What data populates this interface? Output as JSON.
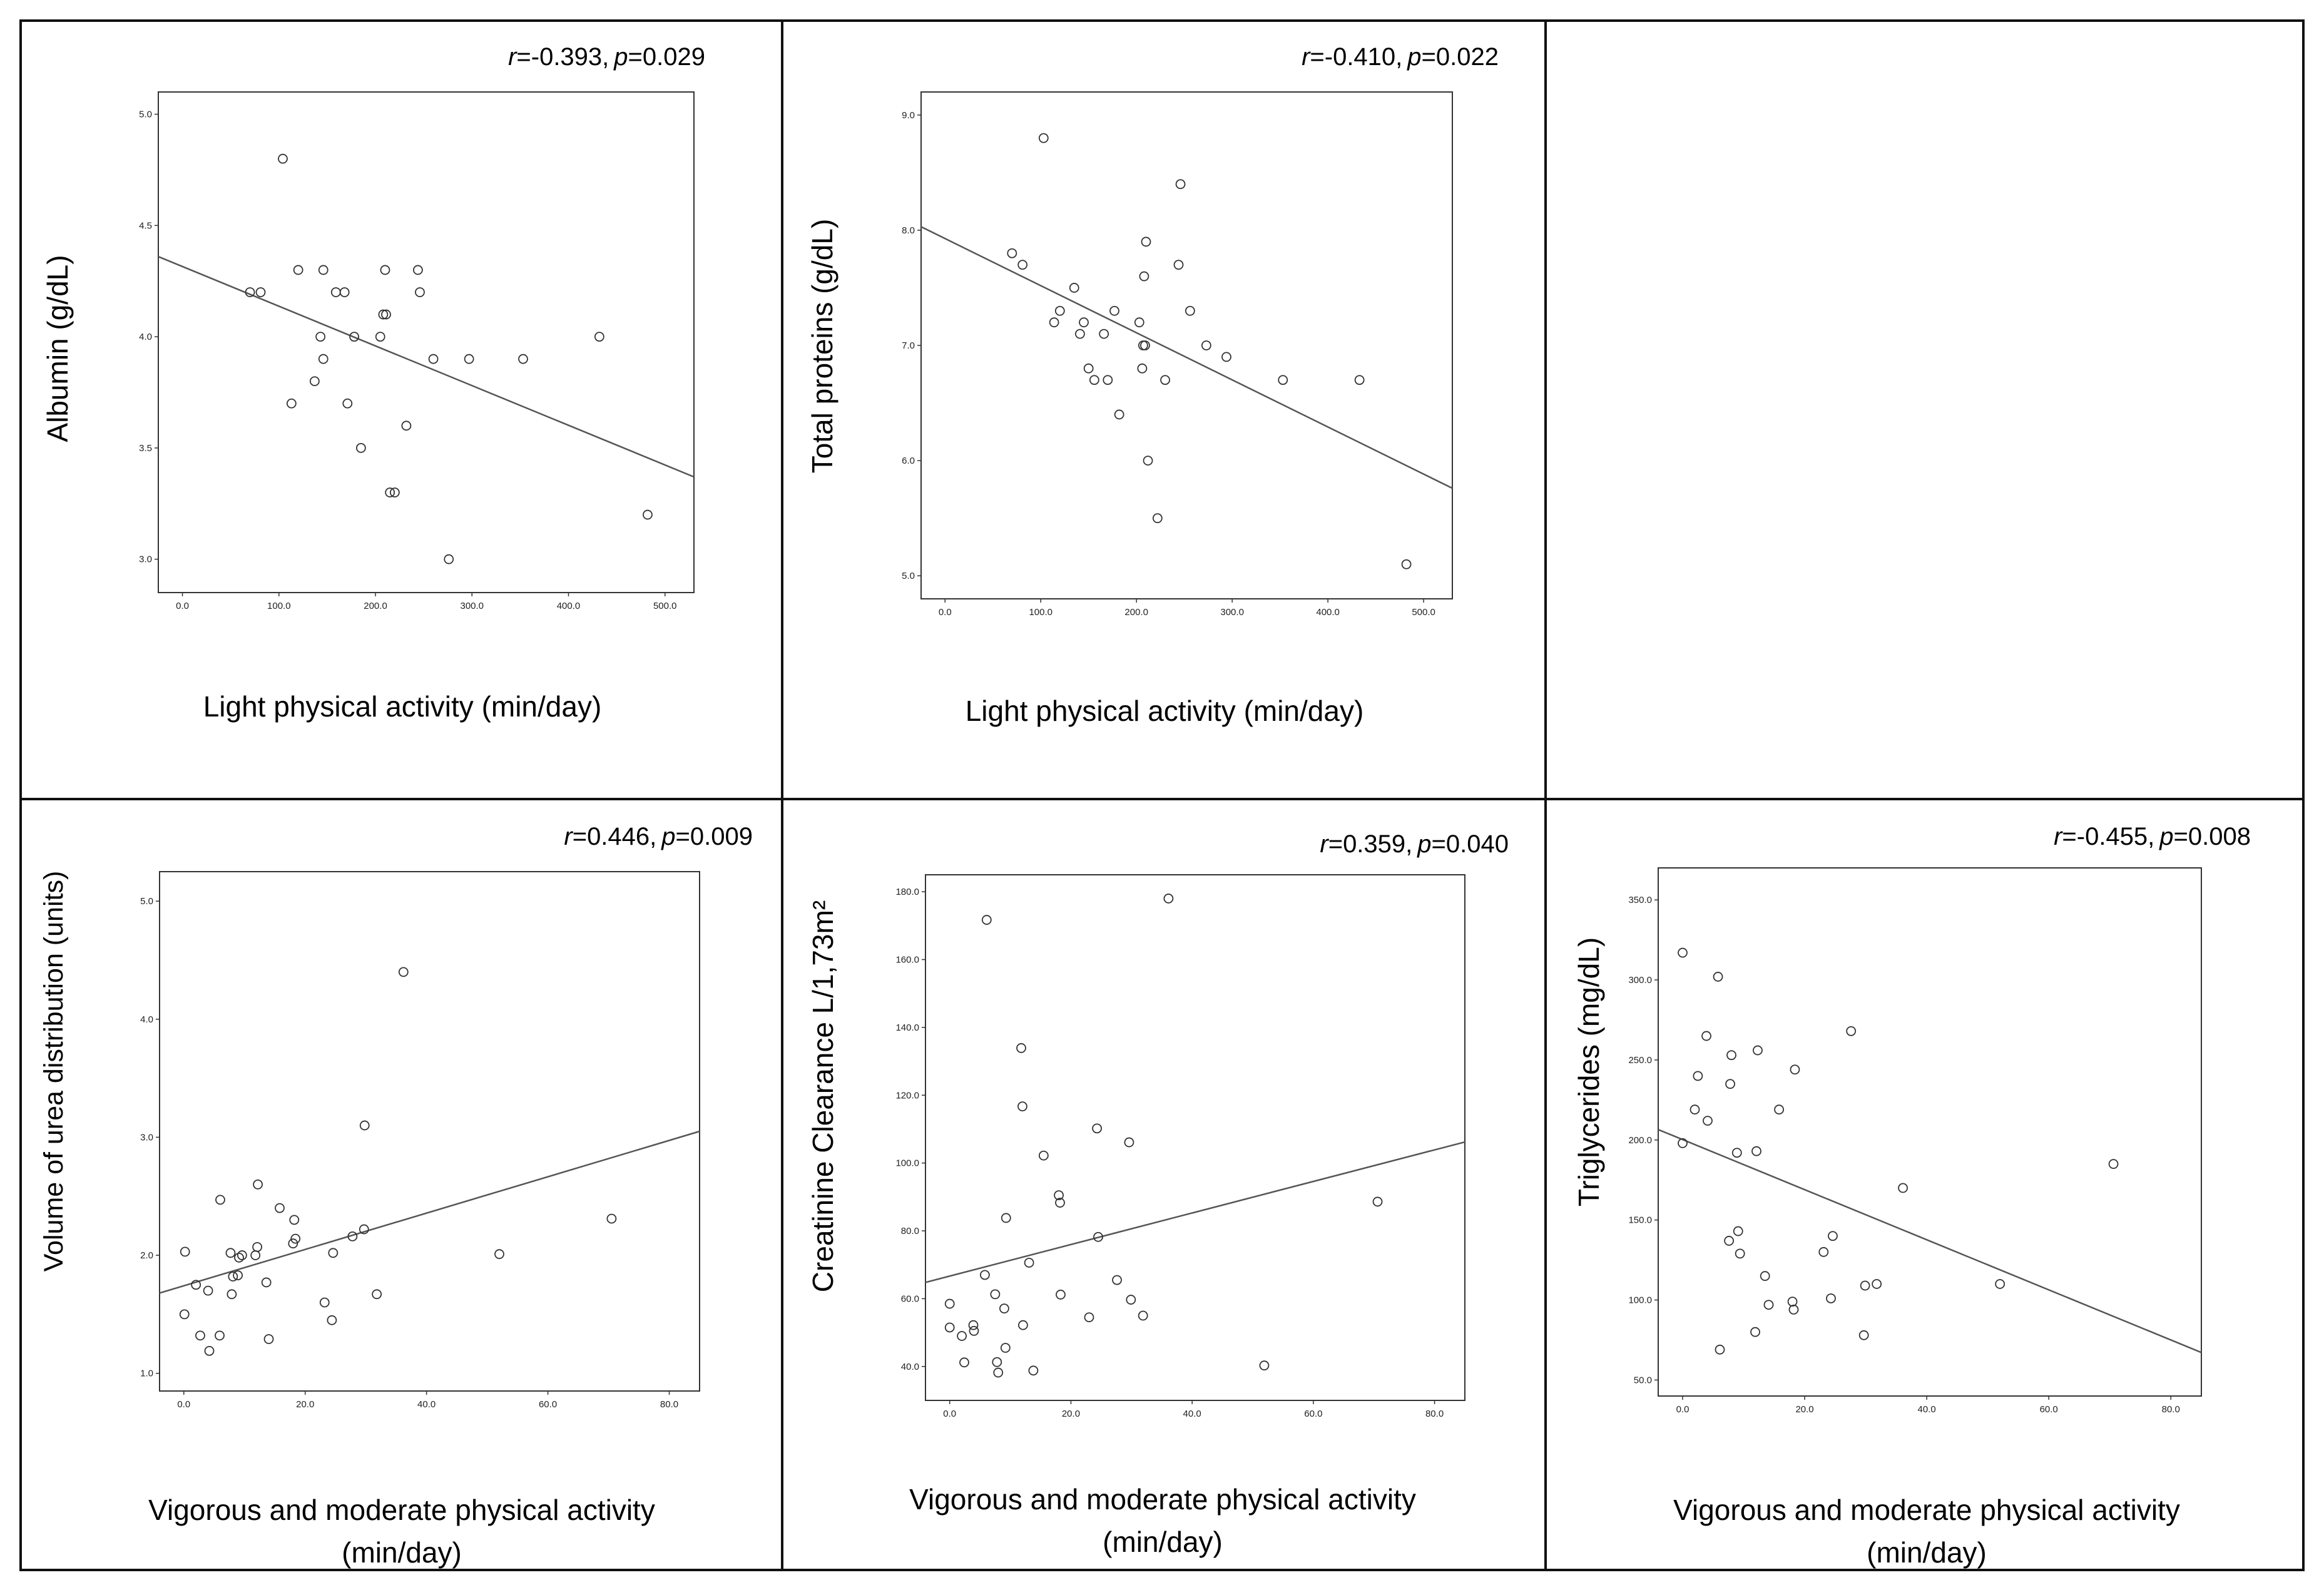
{
  "chart_data": [
    {
      "type": "scatter",
      "panel": "albumin",
      "stat": {
        "r_label": "r",
        "r_value": "=-0.393,",
        "p_label": "p",
        "p_value": "=0.029"
      },
      "xlabel": [
        "Light physical activity (min/day)"
      ],
      "ylabel": "Albumin (g/dL)",
      "xlim": [
        -25,
        530
      ],
      "ylim": [
        2.85,
        5.1
      ],
      "xticks": [
        0,
        100,
        200,
        300,
        400,
        500
      ],
      "xtick_labels": [
        "0.0",
        "100.0",
        "200.0",
        "300.0",
        "400.0",
        "500.0"
      ],
      "yticks": [
        3.0,
        3.5,
        4.0,
        4.5,
        5.0
      ],
      "ytick_labels": [
        "3.0",
        "3.5",
        "4.0",
        "4.5",
        "5.0"
      ],
      "fit_line": {
        "x": [
          -25,
          530
        ],
        "y": [
          4.36,
          3.37
        ]
      },
      "x": [
        104,
        70,
        81,
        120,
        146,
        159,
        168,
        205,
        208,
        211,
        210,
        244,
        246,
        143,
        146,
        137,
        178,
        171,
        113,
        185,
        215,
        220,
        232,
        260,
        297,
        353,
        432,
        276,
        482
      ],
      "y": [
        4.8,
        4.2,
        4.2,
        4.3,
        4.3,
        4.2,
        4.2,
        4.0,
        4.1,
        4.1,
        4.3,
        4.3,
        4.2,
        4.0,
        3.9,
        3.8,
        4.0,
        3.7,
        3.7,
        3.5,
        3.3,
        3.3,
        3.6,
        3.9,
        3.9,
        3.9,
        4.0,
        3.0,
        3.2
      ]
    },
    {
      "type": "scatter",
      "panel": "total-proteins",
      "stat": {
        "r_label": "r",
        "r_value": "=-0.410,",
        "p_label": "p",
        "p_value": "=0.022"
      },
      "xlabel": [
        "Light physical activity (min/day)"
      ],
      "ylabel": "Total proteins (g/dL)",
      "xlim": [
        -25,
        530
      ],
      "ylim": [
        4.8,
        9.2
      ],
      "xticks": [
        0,
        100,
        200,
        300,
        400,
        500
      ],
      "xtick_labels": [
        "0.0",
        "100.0",
        "200.0",
        "300.0",
        "400.0",
        "500.0"
      ],
      "yticks": [
        5.0,
        6.0,
        7.0,
        8.0,
        9.0
      ],
      "ytick_labels": [
        "5.0",
        "6.0",
        "7.0",
        "8.0",
        "9.0"
      ],
      "fit_line": {
        "x": [
          -25,
          530
        ],
        "y": [
          8.03,
          5.76
        ]
      },
      "x": [
        103,
        70,
        81,
        120,
        114,
        135,
        141,
        145,
        150,
        156,
        166,
        170,
        177,
        182,
        203,
        206,
        207,
        208,
        209,
        210,
        212,
        222,
        230,
        244,
        246,
        256,
        273,
        294,
        353,
        433,
        482
      ],
      "y": [
        8.8,
        7.8,
        7.7,
        7.3,
        7.2,
        7.5,
        7.1,
        7.2,
        6.8,
        6.7,
        7.1,
        6.7,
        7.3,
        6.4,
        7.2,
        6.8,
        7.0,
        7.6,
        7.0,
        7.9,
        6.0,
        5.5,
        6.7,
        7.7,
        8.4,
        7.3,
        7.0,
        6.9,
        6.7,
        6.7,
        5.1
      ]
    },
    {
      "type": "scatter",
      "panel": "urea-volume",
      "stat": {
        "r_label": "r",
        "r_value": "=0.446,",
        "p_label": "p",
        "p_value": "=0.009"
      },
      "xlabel": [
        "Vigorous and moderate physical activity",
        "(min/day)"
      ],
      "ylabel": "Volume of urea distribution (units)",
      "xlim": [
        -4,
        85
      ],
      "ylim": [
        0.85,
        5.25
      ],
      "xticks": [
        0,
        20,
        40,
        60,
        80
      ],
      "xtick_labels": [
        "0.0",
        "20.0",
        "40.0",
        "60.0",
        "80.0"
      ],
      "yticks": [
        1.0,
        2.0,
        3.0,
        4.0,
        5.0
      ],
      "ytick_labels": [
        "1.0",
        "2.0",
        "3.0",
        "4.0",
        "5.0"
      ],
      "fit_line": {
        "x": [
          -4,
          85
        ],
        "y": [
          1.68,
          3.05
        ]
      },
      "x": [
        0.2,
        0.1,
        2,
        2.7,
        4,
        4.2,
        5.9,
        6,
        7.7,
        7.9,
        8.1,
        8.9,
        9.1,
        9.6,
        11.8,
        12.1,
        12.2,
        13.6,
        14,
        15.8,
        18,
        18.2,
        18.4,
        23.2,
        24.4,
        24.6,
        27.8,
        29.7,
        29.8,
        31.8,
        36.2,
        52,
        70.5
      ],
      "y": [
        2.03,
        1.5,
        1.75,
        1.32,
        1.7,
        1.19,
        1.32,
        2.47,
        2.02,
        1.67,
        1.82,
        1.83,
        1.98,
        2.0,
        2.0,
        2.07,
        2.6,
        1.77,
        1.29,
        2.4,
        2.1,
        2.3,
        2.14,
        1.6,
        1.45,
        2.02,
        2.16,
        2.22,
        3.1,
        1.67,
        4.4,
        2.01,
        2.31
      ]
    },
    {
      "type": "scatter",
      "panel": "creatinine-clearance",
      "stat": {
        "r_label": "r",
        "r_value": "=0.359,",
        "p_label": "p",
        "p_value": "=0.040"
      },
      "xlabel": [
        "Vigorous and moderate physical activity",
        "(min/day)"
      ],
      "ylabel": "Creatinine  Clearance L/1,73m²",
      "xlim": [
        -4,
        85
      ],
      "ylim": [
        30,
        185
      ],
      "xticks": [
        0,
        20,
        40,
        60,
        80
      ],
      "xtick_labels": [
        "0.0",
        "20.0",
        "40.0",
        "60.0",
        "80.0"
      ],
      "yticks": [
        40,
        60,
        80,
        100,
        120,
        140,
        160,
        180
      ],
      "ytick_labels": [
        "40.0",
        "60.0",
        "80.0",
        "100.0",
        "120.0",
        "140.0",
        "160.0",
        "180.0"
      ],
      "fit_line": {
        "x": [
          -4,
          85
        ],
        "y": [
          64.8,
          106.2
        ]
      },
      "x": [
        0,
        0,
        2,
        2.4,
        3.9,
        4,
        5.8,
        6.1,
        7.5,
        7.8,
        8,
        9,
        9.2,
        9.3,
        11.8,
        12,
        12.1,
        13.1,
        13.8,
        15.5,
        18,
        18.2,
        18.3,
        23,
        24.3,
        24.5,
        27.6,
        29.6,
        29.9,
        31.9,
        36.1,
        51.9,
        70.6
      ],
      "y": [
        58.5,
        51.5,
        49,
        41.2,
        52.2,
        50.5,
        67,
        171.7,
        61.3,
        41.3,
        38.2,
        57.1,
        45.5,
        83.8,
        133.9,
        116.7,
        52.2,
        70.6,
        38.8,
        102.2,
        90.5,
        88.3,
        61.2,
        54.5,
        110.2,
        78.2,
        65.5,
        106.1,
        59.7,
        55,
        178,
        40.3,
        88.6
      ]
    },
    {
      "type": "scatter",
      "panel": "triglycerides",
      "stat": {
        "r_label": "r",
        "r_value": "=-0.455,",
        "p_label": "p",
        "p_value": "=0.008"
      },
      "xlabel": [
        "Vigorous and moderate physical activity",
        "(min/day)"
      ],
      "ylabel": "Triglycerides (mg/dL)",
      "xlim": [
        -4,
        85
      ],
      "ylim": [
        40,
        370
      ],
      "xticks": [
        0,
        20,
        40,
        60,
        80
      ],
      "xtick_labels": [
        "0.0",
        "20.0",
        "40.0",
        "60.0",
        "80.0"
      ],
      "yticks": [
        50,
        100,
        150,
        200,
        250,
        300,
        350
      ],
      "ytick_labels": [
        "50.0",
        "100.0",
        "150.0",
        "200.0",
        "250.0",
        "300.0",
        "350.0"
      ],
      "fit_line": {
        "x": [
          -4,
          85
        ],
        "y": [
          206.5,
          67.2
        ]
      },
      "x": [
        0,
        0,
        2,
        2.5,
        3.9,
        4.1,
        5.8,
        6.1,
        7.6,
        7.8,
        8,
        8.9,
        9.1,
        9.4,
        11.9,
        12.1,
        12.3,
        13.5,
        14.1,
        15.8,
        18,
        18.2,
        18.4,
        23.1,
        24.3,
        24.6,
        27.6,
        29.7,
        29.9,
        31.8,
        36.1,
        52,
        70.6
      ],
      "y": [
        317,
        198,
        219,
        240,
        265,
        212,
        302,
        69,
        137,
        235,
        253,
        192,
        143,
        129,
        80,
        193,
        256,
        115,
        97,
        219,
        99,
        94,
        244,
        130,
        101,
        140,
        268,
        78,
        109,
        110,
        170,
        110,
        185
      ]
    }
  ]
}
